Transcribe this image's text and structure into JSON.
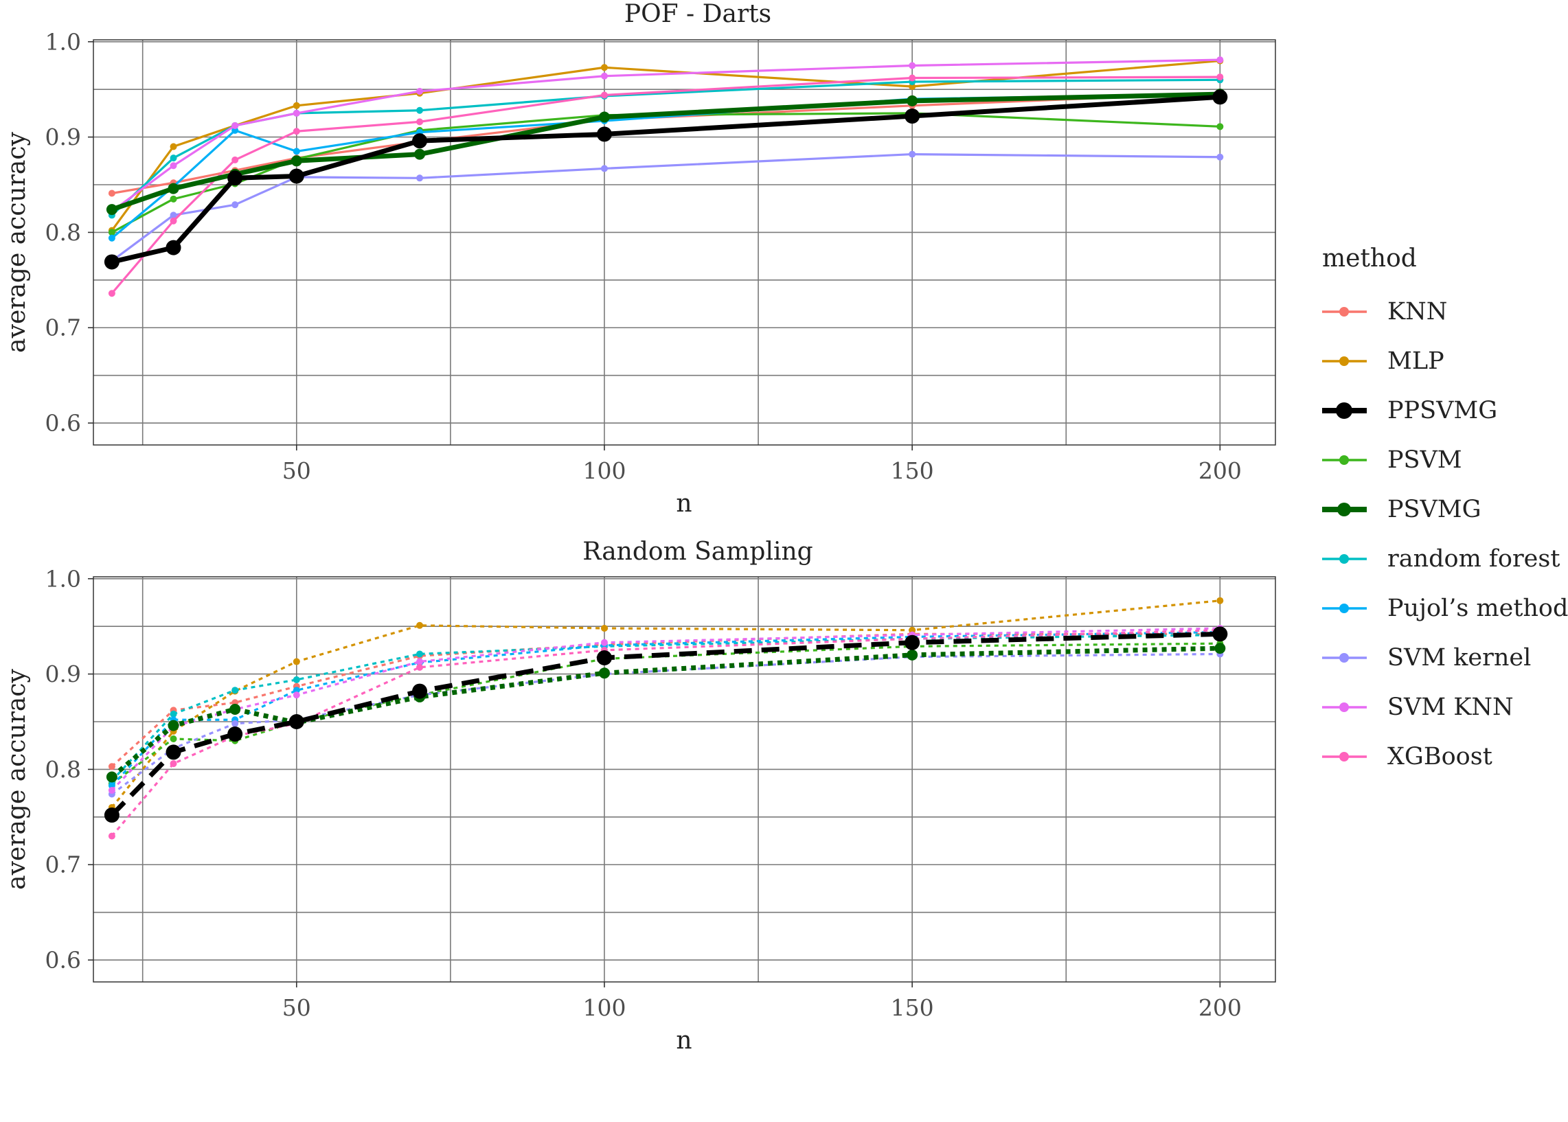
{
  "chart_data": [
    {
      "type": "line",
      "title": "POF - Darts",
      "xlabel": "n",
      "ylabel": "average accuracy",
      "xlim": [
        17,
        209
      ],
      "ylim": [
        0.577,
        1.002
      ],
      "x_ticks": [
        50,
        100,
        150,
        200
      ],
      "y_ticks": [
        0.6,
        0.7,
        0.8,
        0.9,
        1.0
      ],
      "x_tick_labels": [
        "50",
        "100",
        "150",
        "200"
      ],
      "y_tick_labels": [
        "0.6",
        "0.7",
        "0.8",
        "0.9",
        "1.0"
      ],
      "x": [
        20,
        30,
        40,
        50,
        70,
        100,
        150,
        200
      ],
      "line_style": "solid",
      "series": [
        {
          "name": "KNN",
          "values": [
            0.841,
            0.852,
            0.865,
            0.878,
            0.895,
            0.918,
            0.933,
            0.946
          ]
        },
        {
          "name": "MLP",
          "values": [
            0.802,
            0.89,
            0.912,
            0.933,
            0.946,
            0.973,
            0.953,
            0.98
          ]
        },
        {
          "name": "PPSVMG",
          "values": [
            0.769,
            0.784,
            0.857,
            0.859,
            0.896,
            0.903,
            0.922,
            0.942
          ]
        },
        {
          "name": "PSVM",
          "values": [
            0.8,
            0.835,
            0.851,
            0.877,
            0.907,
            0.923,
            0.925,
            0.911
          ]
        },
        {
          "name": "PSVMG",
          "values": [
            0.824,
            0.846,
            0.861,
            0.875,
            0.882,
            0.921,
            0.938,
            0.945
          ]
        },
        {
          "name": "random forest",
          "values": [
            0.818,
            0.878,
            0.912,
            0.925,
            0.928,
            0.943,
            0.958,
            0.96
          ]
        },
        {
          "name": "Pujol's method",
          "values": [
            0.794,
            0.848,
            0.907,
            0.885,
            0.905,
            0.917,
            0.94,
            0.945
          ]
        },
        {
          "name": "SVM kernel",
          "values": [
            0.77,
            0.818,
            0.829,
            0.858,
            0.857,
            0.867,
            0.882,
            0.879
          ]
        },
        {
          "name": "SVM KNN",
          "values": [
            0.822,
            0.87,
            0.912,
            0.925,
            0.948,
            0.964,
            0.975,
            0.981
          ]
        },
        {
          "name": "XGBoost",
          "values": [
            0.736,
            0.812,
            0.876,
            0.906,
            0.916,
            0.944,
            0.962,
            0.963
          ]
        }
      ]
    },
    {
      "type": "line",
      "title": "Random Sampling",
      "xlabel": "n",
      "ylabel": "average accuracy",
      "xlim": [
        17,
        209
      ],
      "ylim": [
        0.577,
        1.002
      ],
      "x_ticks": [
        50,
        100,
        150,
        200
      ],
      "y_ticks": [
        0.6,
        0.7,
        0.8,
        0.9,
        1.0
      ],
      "x_tick_labels": [
        "50",
        "100",
        "150",
        "200"
      ],
      "y_tick_labels": [
        "0.6",
        "0.7",
        "0.8",
        "0.9",
        "1.0"
      ],
      "x": [
        20,
        30,
        40,
        50,
        70,
        100,
        150,
        200
      ],
      "line_style": "dotted",
      "series": [
        {
          "name": "KNN",
          "values": [
            0.803,
            0.862,
            0.87,
            0.887,
            0.919,
            0.931,
            0.942,
            0.942
          ]
        },
        {
          "name": "MLP",
          "values": [
            0.76,
            0.84,
            0.882,
            0.913,
            0.951,
            0.948,
            0.946,
            0.977
          ]
        },
        {
          "name": "PPSVMG",
          "values": [
            0.752,
            0.818,
            0.837,
            0.85,
            0.882,
            0.917,
            0.933,
            0.942
          ]
        },
        {
          "name": "PSVM",
          "values": [
            0.785,
            0.832,
            0.83,
            0.85,
            0.878,
            0.916,
            0.929,
            0.932
          ]
        },
        {
          "name": "PSVMG",
          "values": [
            0.792,
            0.846,
            0.863,
            0.849,
            0.876,
            0.901,
            0.92,
            0.927
          ]
        },
        {
          "name": "random forest",
          "values": [
            0.788,
            0.858,
            0.883,
            0.894,
            0.921,
            0.929,
            0.937,
            0.941
          ]
        },
        {
          "name": "Pujol's method",
          "values": [
            0.783,
            0.852,
            0.852,
            0.883,
            0.912,
            0.93,
            0.939,
            0.944
          ]
        },
        {
          "name": "SVM kernel",
          "values": [
            0.774,
            0.822,
            0.848,
            0.852,
            0.878,
            0.9,
            0.918,
            0.921
          ]
        },
        {
          "name": "SVM KNN",
          "values": [
            0.778,
            0.845,
            0.863,
            0.878,
            0.913,
            0.933,
            0.941,
            0.948
          ]
        },
        {
          "name": "XGBoost",
          "values": [
            0.73,
            0.806,
            0.835,
            0.848,
            0.907,
            0.925,
            0.937,
            0.946
          ]
        }
      ]
    }
  ],
  "legend": {
    "title": "method",
    "items": [
      {
        "label": "KNN",
        "color": "#F8766D",
        "style": "normal"
      },
      {
        "label": "MLP",
        "color": "#D39200",
        "style": "normal"
      },
      {
        "label": "PPSVMG",
        "color": "#000000",
        "style": "bold"
      },
      {
        "label": "PSVM",
        "color": "#3DB61D",
        "style": "normal"
      },
      {
        "label": "PSVMG",
        "color": "#006400",
        "style": "thick"
      },
      {
        "label": "random forest",
        "color": "#00BFC4",
        "style": "normal"
      },
      {
        "label": "Pujol’s method",
        "color": "#00B0F6",
        "style": "normal"
      },
      {
        "label": "SVM kernel",
        "color": "#9590FF",
        "style": "normal"
      },
      {
        "label": "SVM KNN",
        "color": "#E76BF3",
        "style": "normal"
      },
      {
        "label": "XGBoost",
        "color": "#FF62BC",
        "style": "normal"
      }
    ]
  }
}
